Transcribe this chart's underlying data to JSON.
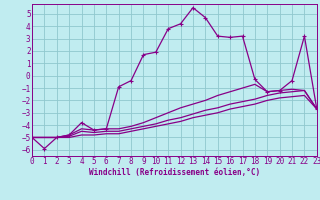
{
  "xlabel": "Windchill (Refroidissement éolien,°C)",
  "bg_color": "#c0ecf0",
  "grid_color": "#90c8ce",
  "line_color": "#880088",
  "xlim": [
    0,
    23
  ],
  "ylim": [
    -6.5,
    5.8
  ],
  "yticks": [
    -6,
    -5,
    -4,
    -3,
    -2,
    -1,
    0,
    1,
    2,
    3,
    4,
    5
  ],
  "xticks": [
    0,
    1,
    2,
    3,
    4,
    5,
    6,
    7,
    8,
    9,
    10,
    11,
    12,
    13,
    14,
    15,
    16,
    17,
    18,
    19,
    20,
    21,
    22,
    23
  ],
  "line1_x": [
    0,
    1,
    2,
    3,
    4,
    5,
    6,
    7,
    8,
    9,
    10,
    11,
    12,
    13,
    14,
    15,
    16,
    17,
    18,
    19,
    20,
    21,
    22,
    23
  ],
  "line1_y": [
    -5.0,
    -5.9,
    -5.0,
    -4.8,
    -3.8,
    -4.4,
    -4.3,
    -0.9,
    -0.4,
    1.7,
    1.9,
    3.8,
    4.2,
    5.5,
    4.7,
    3.2,
    3.1,
    3.2,
    -0.3,
    -1.3,
    -1.2,
    -0.4,
    3.2,
    -2.7
  ],
  "line2_x": [
    0,
    1,
    2,
    3,
    4,
    5,
    6,
    7,
    8,
    9,
    10,
    11,
    12,
    13,
    14,
    15,
    16,
    17,
    18,
    19,
    20,
    21,
    22,
    23
  ],
  "line2_y": [
    -5.0,
    -5.0,
    -5.0,
    -4.8,
    -4.3,
    -4.4,
    -4.3,
    -4.3,
    -4.1,
    -3.8,
    -3.4,
    -3.0,
    -2.6,
    -2.3,
    -2.0,
    -1.6,
    -1.3,
    -1.0,
    -0.7,
    -1.3,
    -1.2,
    -1.1,
    -1.2,
    -2.7
  ],
  "line3_x": [
    0,
    1,
    2,
    3,
    4,
    5,
    6,
    7,
    8,
    9,
    10,
    11,
    12,
    13,
    14,
    15,
    16,
    17,
    18,
    19,
    20,
    21,
    22,
    23
  ],
  "line3_y": [
    -5.0,
    -5.0,
    -5.0,
    -4.9,
    -4.5,
    -4.6,
    -4.5,
    -4.5,
    -4.3,
    -4.1,
    -3.9,
    -3.6,
    -3.4,
    -3.1,
    -2.8,
    -2.6,
    -2.3,
    -2.1,
    -1.9,
    -1.6,
    -1.4,
    -1.3,
    -1.2,
    -2.7
  ],
  "line4_x": [
    0,
    1,
    2,
    3,
    4,
    5,
    6,
    7,
    8,
    9,
    10,
    11,
    12,
    13,
    14,
    15,
    16,
    17,
    18,
    19,
    20,
    21,
    22,
    23
  ],
  "line4_y": [
    -5.0,
    -5.0,
    -5.0,
    -5.0,
    -4.8,
    -4.8,
    -4.7,
    -4.7,
    -4.5,
    -4.3,
    -4.1,
    -3.9,
    -3.7,
    -3.4,
    -3.2,
    -3.0,
    -2.7,
    -2.5,
    -2.3,
    -2.0,
    -1.8,
    -1.7,
    -1.6,
    -2.7
  ]
}
